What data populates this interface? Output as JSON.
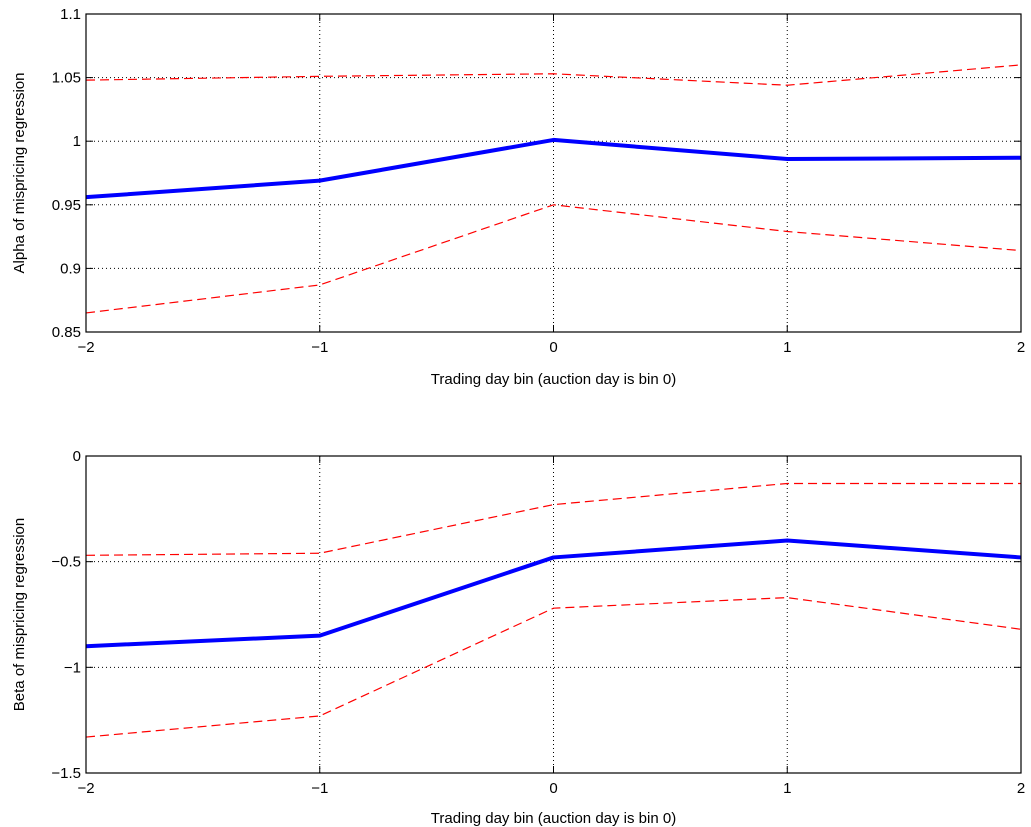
{
  "chart_data": [
    {
      "type": "line",
      "xlabel": "Trading day bin (auction day is bin 0)",
      "ylabel": "Alpha of mispricing regression",
      "xlim": [
        -2,
        2
      ],
      "ylim": [
        0.85,
        1.1
      ],
      "x": [
        -2,
        -1,
        0,
        1,
        2
      ],
      "xticks": [
        "−2",
        "−1",
        "0",
        "1",
        "2"
      ],
      "yticks": [
        {
          "value": 0.85,
          "label": "0.85"
        },
        {
          "value": 0.9,
          "label": "0.9"
        },
        {
          "value": 0.95,
          "label": "0.95"
        },
        {
          "value": 1.0,
          "label": "1"
        },
        {
          "value": 1.05,
          "label": "1.05"
        },
        {
          "value": 1.1,
          "label": "1.1"
        }
      ],
      "grid": true,
      "series": [
        {
          "style": "solid-thick",
          "color": "#0000ff",
          "values": [
            0.956,
            0.969,
            1.001,
            0.986,
            0.987
          ]
        },
        {
          "style": "dashed",
          "color": "#ff0000",
          "values": [
            1.048,
            1.051,
            1.053,
            1.044,
            1.06
          ]
        },
        {
          "style": "dashed",
          "color": "#ff0000",
          "values": [
            0.865,
            0.887,
            0.95,
            0.929,
            0.914
          ]
        }
      ]
    },
    {
      "type": "line",
      "xlabel": "Trading day bin (auction day is bin 0)",
      "ylabel": "Beta of mispricing regression",
      "xlim": [
        -2,
        2
      ],
      "ylim": [
        -1.5,
        0
      ],
      "x": [
        -2,
        -1,
        0,
        1,
        2
      ],
      "xticks": [
        "−2",
        "−1",
        "0",
        "1",
        "2"
      ],
      "yticks": [
        {
          "value": -1.5,
          "label": "−1.5"
        },
        {
          "value": -1.0,
          "label": "−1"
        },
        {
          "value": -0.5,
          "label": "−0.5"
        },
        {
          "value": 0,
          "label": "0"
        }
      ],
      "grid": true,
      "series": [
        {
          "style": "solid-thick",
          "color": "#0000ff",
          "values": [
            -0.9,
            -0.85,
            -0.48,
            -0.4,
            -0.48
          ]
        },
        {
          "style": "dashed",
          "color": "#ff0000",
          "values": [
            -0.47,
            -0.46,
            -0.23,
            -0.13,
            -0.13
          ]
        },
        {
          "style": "dashed",
          "color": "#ff0000",
          "values": [
            -1.33,
            -1.23,
            -0.72,
            -0.67,
            -0.82
          ]
        }
      ]
    }
  ]
}
